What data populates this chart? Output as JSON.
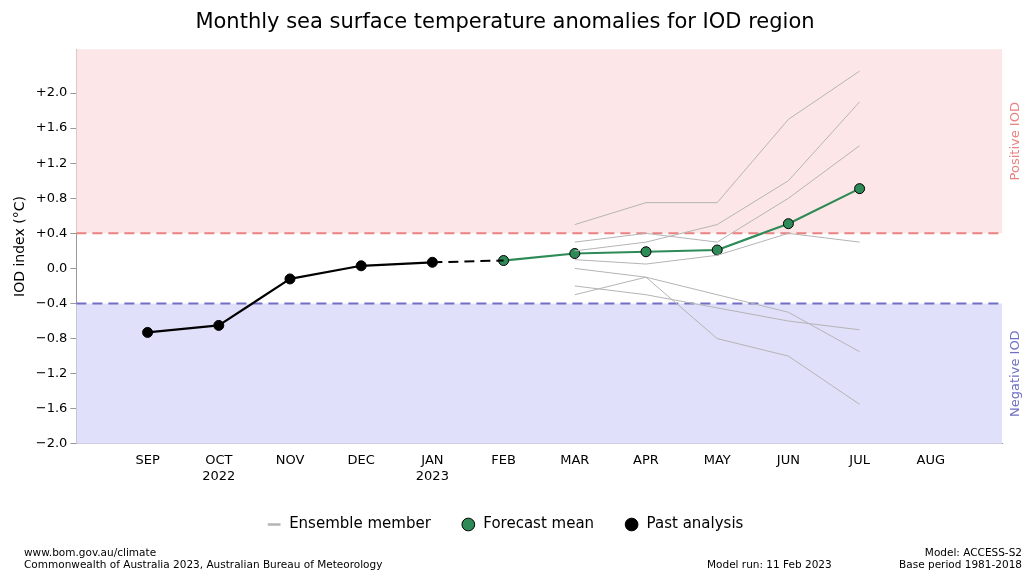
{
  "chart_data": {
    "type": "line",
    "title": "Monthly sea surface temperature anomalies for IOD region",
    "ylabel": "IOD index (°C)",
    "categories": [
      "SEP",
      "OCT\n2022",
      "NOV",
      "DEC",
      "JAN\n2023",
      "FEB",
      "MAR",
      "APR",
      "MAY",
      "JUN",
      "JUL",
      "AUG"
    ],
    "ylim": [
      -2.0,
      2.5
    ],
    "yticks": [
      {
        "value": -2.0,
        "label": "−2.0"
      },
      {
        "value": -1.6,
        "label": "−1.6"
      },
      {
        "value": -1.2,
        "label": "−1.2"
      },
      {
        "value": -0.8,
        "label": "−0.8"
      },
      {
        "value": -0.4,
        "label": "−0.4"
      },
      {
        "value": 0,
        "label": "0.0"
      },
      {
        "value": 0.4,
        "label": "+0.4"
      },
      {
        "value": 0.8,
        "label": "+0.8"
      },
      {
        "value": 1.2,
        "label": "+1.2"
      },
      {
        "value": 1.6,
        "label": "+1.6"
      },
      {
        "value": 2.0,
        "label": "+2.0"
      }
    ],
    "grid": false,
    "legend": "bottom",
    "bands": [
      {
        "axis": "y",
        "from": 0.4,
        "to": 2.5,
        "label": "Positive IOD",
        "color": "#fde6e8"
      },
      {
        "axis": "y",
        "from": -2.0,
        "to": -0.4,
        "label": "Negative IOD",
        "color": "#e0e0fb"
      }
    ],
    "ref_lines": [
      {
        "axis": "y",
        "value": 0.4,
        "color": "#e8837f",
        "line_style": "dashed"
      },
      {
        "axis": "y",
        "value": -0.4,
        "color": "#6f6fc4",
        "line_style": "dashed"
      }
    ],
    "series": [
      {
        "name": "Ensemble member",
        "color": "#b4b4b4",
        "marker": "none",
        "values": [
          null,
          null,
          null,
          null,
          null,
          null,
          0.5,
          0.75,
          0.75,
          1.7,
          2.25,
          null
        ]
      },
      {
        "color": "#b4b4b4",
        "marker": "none",
        "values": [
          null,
          null,
          null,
          null,
          null,
          null,
          -0.3,
          -0.1,
          -0.8,
          -1.0,
          -1.55,
          null
        ]
      },
      {
        "color": "#b4b4b4",
        "marker": "none",
        "values": [
          null,
          null,
          null,
          null,
          null,
          null,
          0.2,
          0.3,
          0.5,
          1.0,
          1.9,
          null
        ]
      },
      {
        "color": "#b4b4b4",
        "marker": "none",
        "values": [
          null,
          null,
          null,
          null,
          null,
          null,
          0.0,
          -0.1,
          -0.3,
          -0.5,
          -0.95,
          null
        ]
      },
      {
        "color": "#b4b4b4",
        "marker": "none",
        "values": [
          null,
          null,
          null,
          null,
          null,
          null,
          0.1,
          0.05,
          0.15,
          0.4,
          0.3,
          null
        ]
      },
      {
        "color": "#b4b4b4",
        "marker": "none",
        "values": [
          null,
          null,
          null,
          null,
          null,
          null,
          0.3,
          0.4,
          0.3,
          0.8,
          1.4,
          null
        ]
      },
      {
        "color": "#b4b4b4",
        "marker": "none",
        "values": [
          null,
          null,
          null,
          null,
          null,
          null,
          -0.2,
          -0.3,
          -0.45,
          -0.6,
          -0.7,
          null
        ]
      },
      {
        "color": "#000000",
        "line_style": "dashed",
        "values": [
          null,
          null,
          null,
          null,
          0.07,
          0.09,
          null,
          null,
          null,
          null,
          null,
          null
        ]
      },
      {
        "name": "Forecast mean",
        "color": "#2e8b57",
        "marker": "circle",
        "values": [
          null,
          null,
          null,
          null,
          null,
          0.09,
          0.17,
          0.19,
          0.21,
          0.51,
          0.91,
          null
        ]
      },
      {
        "name": "Past analysis",
        "color": "#000000",
        "marker": "circle",
        "values": [
          -0.73,
          -0.65,
          -0.12,
          0.03,
          0.07,
          null,
          null,
          null,
          null,
          null,
          null,
          null
        ]
      }
    ],
    "annotations": [
      "www.bom.gov.au/climate",
      "Commonwealth of Australia 2023, Australian Bureau of Meteorology",
      "Model run: 11 Feb 2023",
      "Model: ACCESS-S2",
      "Base period 1981-2018"
    ]
  }
}
